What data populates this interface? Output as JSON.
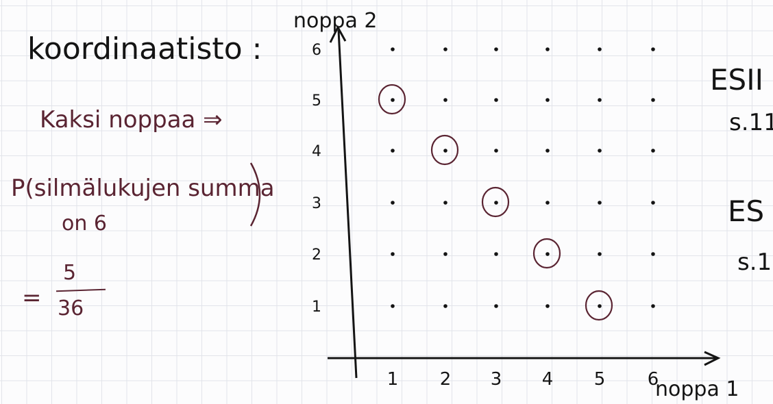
{
  "title": "koordinaatisto :",
  "left_notes": {
    "two_dice": "Kaksi noppaa ⇒",
    "probability_line1": "P(silmälukujen summa",
    "probability_line2": "on 6",
    "equals": "=",
    "numerator": "5",
    "denominator": "36"
  },
  "right_notes": {
    "example1": "ESII",
    "page1": "s.11",
    "example2": "ES",
    "page2": "s.1"
  },
  "chart_data": {
    "type": "scatter",
    "xlabel": "noppa 1",
    "ylabel": "noppa 2",
    "x_ticks": [
      "1",
      "2",
      "3",
      "4",
      "5",
      "6"
    ],
    "y_ticks": [
      "1",
      "2",
      "3",
      "4",
      "5",
      "6"
    ],
    "grid_points": "all integer pairs (x, y) with 1 ≤ x ≤ 6 and 1 ≤ y ≤ 6",
    "circled_points": [
      [
        1,
        5
      ],
      [
        2,
        4
      ],
      [
        3,
        3
      ],
      [
        4,
        2
      ],
      [
        5,
        1
      ]
    ],
    "colors": {
      "ink": "#141414",
      "highlight": "#5a2432"
    }
  }
}
